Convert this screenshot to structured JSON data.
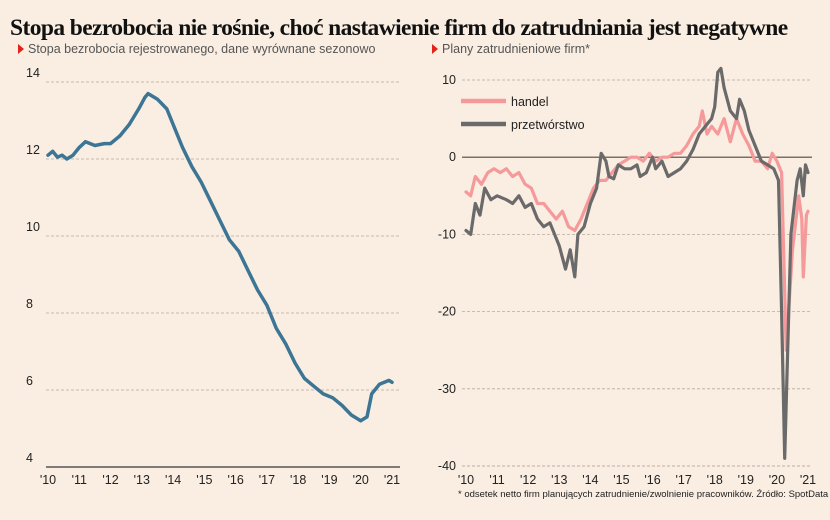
{
  "title": "Stopa bezrobocia nie rośnie, choć nastawienie firm do zatrudniania jest negatywne",
  "footnote": "* odsetek netto firm planujących zatrudnienie/zwolnienie pracowników. Źródło: SpotData",
  "colors": {
    "background": "#faeee2",
    "unemployment": "#3d7595",
    "handel": "#f5999a",
    "przetworstwo": "#6b6a6a",
    "marker": "#e2231a"
  },
  "chart_data": [
    {
      "type": "line",
      "title": "Stopa bezrobocia rejestrowanego, dane wyrównane sezonowo",
      "xlabel": "",
      "ylabel": "",
      "xlim": [
        2010,
        2021
      ],
      "ylim": [
        4,
        14
      ],
      "x_ticks": [
        "'10",
        "'11",
        "'12",
        "'13",
        "'14",
        "'15",
        "'16",
        "'17",
        "'18",
        "'19",
        "'20",
        "'21"
      ],
      "y_ticks": [
        "4",
        "6",
        "8",
        "10",
        "12",
        "14"
      ],
      "grid": "horizontal dashed",
      "series": [
        {
          "points": [
            [
              2010,
              12.1
            ],
            [
              2010.15,
              12.2
            ],
            [
              2010.3,
              12.05
            ],
            [
              2010.45,
              12.1
            ],
            [
              2010.6,
              12.0
            ],
            [
              2010.8,
              12.1
            ],
            [
              2011,
              12.3
            ],
            [
              2011.2,
              12.45
            ],
            [
              2011.5,
              12.35
            ],
            [
              2011.8,
              12.4
            ],
            [
              2012,
              12.4
            ],
            [
              2012.3,
              12.6
            ],
            [
              2012.6,
              12.9
            ],
            [
              2012.9,
              13.3
            ],
            [
              2013.1,
              13.6
            ],
            [
              2013.2,
              13.7
            ],
            [
              2013.5,
              13.55
            ],
            [
              2013.8,
              13.3
            ],
            [
              2014,
              12.9
            ],
            [
              2014.3,
              12.3
            ],
            [
              2014.6,
              11.8
            ],
            [
              2014.9,
              11.4
            ],
            [
              2015.2,
              10.9
            ],
            [
              2015.5,
              10.4
            ],
            [
              2015.8,
              9.9
            ],
            [
              2016.1,
              9.6
            ],
            [
              2016.4,
              9.1
            ],
            [
              2016.7,
              8.6
            ],
            [
              2017,
              8.2
            ],
            [
              2017.3,
              7.6
            ],
            [
              2017.6,
              7.2
            ],
            [
              2017.9,
              6.7
            ],
            [
              2018.2,
              6.3
            ],
            [
              2018.5,
              6.1
            ],
            [
              2018.8,
              5.9
            ],
            [
              2019.1,
              5.8
            ],
            [
              2019.4,
              5.6
            ],
            [
              2019.7,
              5.35
            ],
            [
              2020,
              5.2
            ],
            [
              2020.2,
              5.3
            ],
            [
              2020.35,
              5.9
            ],
            [
              2020.6,
              6.15
            ],
            [
              2020.9,
              6.25
            ],
            [
              2021,
              6.2
            ]
          ]
        }
      ]
    },
    {
      "type": "line",
      "title": "Plany zatrudnieniowe firm*",
      "xlabel": "",
      "ylabel": "",
      "xlim": [
        2010,
        2021
      ],
      "ylim": [
        -40,
        12
      ],
      "x_ticks": [
        "'10",
        "'11",
        "'12",
        "'13",
        "'14",
        "'15",
        "'16",
        "'17",
        "'18",
        "'19",
        "'20",
        "'21"
      ],
      "y_ticks": [
        "10",
        "0",
        "-10",
        "-20",
        "-30",
        "-40"
      ],
      "grid": "horizontal dashed",
      "legend": "top-left",
      "series": [
        {
          "name": "handel",
          "points": [
            [
              2010,
              -4.5
            ],
            [
              2010.15,
              -5
            ],
            [
              2010.3,
              -2.5
            ],
            [
              2010.5,
              -3.5
            ],
            [
              2010.7,
              -2
            ],
            [
              2010.9,
              -1.5
            ],
            [
              2011.1,
              -2
            ],
            [
              2011.3,
              -1.5
            ],
            [
              2011.5,
              -2.5
            ],
            [
              2011.7,
              -2
            ],
            [
              2011.9,
              -3.5
            ],
            [
              2012.1,
              -4
            ],
            [
              2012.3,
              -6
            ],
            [
              2012.5,
              -6
            ],
            [
              2012.7,
              -7
            ],
            [
              2012.9,
              -8
            ],
            [
              2013.1,
              -7
            ],
            [
              2013.3,
              -9
            ],
            [
              2013.5,
              -9.5
            ],
            [
              2013.7,
              -8
            ],
            [
              2013.9,
              -6
            ],
            [
              2014.1,
              -4
            ],
            [
              2014.3,
              -3
            ],
            [
              2014.5,
              -3
            ],
            [
              2014.7,
              -2
            ],
            [
              2014.9,
              -1
            ],
            [
              2015.1,
              -0.5
            ],
            [
              2015.3,
              0
            ],
            [
              2015.5,
              0
            ],
            [
              2015.7,
              -0.5
            ],
            [
              2015.9,
              0.5
            ],
            [
              2016.1,
              -0.5
            ],
            [
              2016.3,
              0
            ],
            [
              2016.5,
              0
            ],
            [
              2016.7,
              0.5
            ],
            [
              2016.9,
              0.5
            ],
            [
              2017.1,
              1.5
            ],
            [
              2017.3,
              3
            ],
            [
              2017.5,
              4
            ],
            [
              2017.6,
              6
            ],
            [
              2017.75,
              3
            ],
            [
              2017.9,
              4
            ],
            [
              2018.1,
              3
            ],
            [
              2018.3,
              5
            ],
            [
              2018.5,
              2
            ],
            [
              2018.7,
              5
            ],
            [
              2018.9,
              3
            ],
            [
              2019.1,
              1.5
            ],
            [
              2019.3,
              -0.5
            ],
            [
              2019.5,
              -0.5
            ],
            [
              2019.7,
              -1.5
            ],
            [
              2019.85,
              0.5
            ],
            [
              2020,
              -0.5
            ],
            [
              2020.15,
              -2
            ],
            [
              2020.3,
              -25
            ],
            [
              2020.5,
              -12
            ],
            [
              2020.7,
              -5
            ],
            [
              2020.8,
              -8
            ],
            [
              2020.85,
              -15.5
            ],
            [
              2020.95,
              -7.5
            ],
            [
              2021,
              -7
            ]
          ]
        },
        {
          "name": "przetwórstwo",
          "points": [
            [
              2010,
              -9.5
            ],
            [
              2010.15,
              -10
            ],
            [
              2010.3,
              -6
            ],
            [
              2010.45,
              -7.5
            ],
            [
              2010.6,
              -4
            ],
            [
              2010.8,
              -5.5
            ],
            [
              2011,
              -5
            ],
            [
              2011.3,
              -5.5
            ],
            [
              2011.5,
              -6
            ],
            [
              2011.7,
              -5
            ],
            [
              2011.9,
              -6.5
            ],
            [
              2012.1,
              -6
            ],
            [
              2012.3,
              -8
            ],
            [
              2012.5,
              -9
            ],
            [
              2012.7,
              -8.5
            ],
            [
              2012.9,
              -10.5
            ],
            [
              2013,
              -11.5
            ],
            [
              2013.2,
              -14.5
            ],
            [
              2013.35,
              -12
            ],
            [
              2013.5,
              -15.5
            ],
            [
              2013.6,
              -10
            ],
            [
              2013.8,
              -9
            ],
            [
              2014,
              -6
            ],
            [
              2014.2,
              -4
            ],
            [
              2014.35,
              0.5
            ],
            [
              2014.5,
              -0.5
            ],
            [
              2014.6,
              -2.5
            ],
            [
              2014.75,
              -2.8
            ],
            [
              2014.9,
              -1
            ],
            [
              2015.1,
              -1.5
            ],
            [
              2015.3,
              -1.5
            ],
            [
              2015.5,
              -1
            ],
            [
              2015.6,
              -2.5
            ],
            [
              2015.8,
              -2
            ],
            [
              2016,
              0
            ],
            [
              2016.1,
              -1.5
            ],
            [
              2016.3,
              -0.5
            ],
            [
              2016.5,
              -2.5
            ],
            [
              2016.7,
              -2
            ],
            [
              2016.9,
              -1.5
            ],
            [
              2017.1,
              -0.5
            ],
            [
              2017.3,
              1
            ],
            [
              2017.5,
              3
            ],
            [
              2017.7,
              4
            ],
            [
              2017.9,
              5
            ],
            [
              2018,
              6.5
            ],
            [
              2018.1,
              11
            ],
            [
              2018.2,
              11.5
            ],
            [
              2018.3,
              9
            ],
            [
              2018.5,
              6
            ],
            [
              2018.7,
              5
            ],
            [
              2018.8,
              7.5
            ],
            [
              2018.95,
              6
            ],
            [
              2019.1,
              3.5
            ],
            [
              2019.3,
              1.5
            ],
            [
              2019.5,
              -0.5
            ],
            [
              2019.7,
              -1
            ],
            [
              2019.9,
              -1.5
            ],
            [
              2020.05,
              -3
            ],
            [
              2020.15,
              -20
            ],
            [
              2020.25,
              -39
            ],
            [
              2020.45,
              -10
            ],
            [
              2020.65,
              -3
            ],
            [
              2020.75,
              -1.5
            ],
            [
              2020.85,
              -5
            ],
            [
              2020.92,
              -1
            ],
            [
              2021,
              -2
            ]
          ]
        }
      ]
    }
  ]
}
